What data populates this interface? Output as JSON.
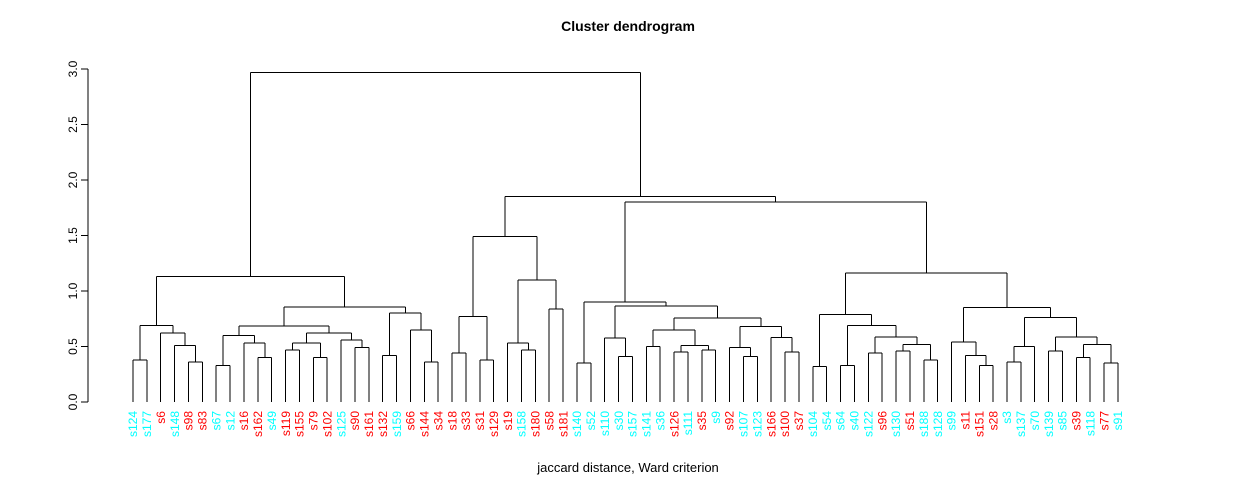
{
  "chart": {
    "title": "Cluster dendrogram",
    "xlabel": "jaccard distance, Ward criterion"
  },
  "chart_data": {
    "type": "dendrogram",
    "title": "Cluster dendrogram",
    "xlabel": "jaccard distance, Ward criterion",
    "ylabel": "",
    "y_axis": {
      "ticks": [
        "0.0",
        "0.5",
        "1.0",
        "1.5",
        "2.0",
        "2.5",
        "3.0"
      ],
      "range": [
        0,
        3.0
      ]
    },
    "legend": {
      "position": "none",
      "grid": false
    },
    "leaf_colors": {
      "cyan": "#00ffff",
      "red": "#ff0000"
    },
    "leaves": [
      {
        "label": "s124",
        "color": "cyan"
      },
      {
        "label": "s177",
        "color": "cyan"
      },
      {
        "label": "s6",
        "color": "red"
      },
      {
        "label": "s148",
        "color": "cyan"
      },
      {
        "label": "s98",
        "color": "red"
      },
      {
        "label": "s83",
        "color": "red"
      },
      {
        "label": "s67",
        "color": "cyan"
      },
      {
        "label": "s12",
        "color": "cyan"
      },
      {
        "label": "s16",
        "color": "red"
      },
      {
        "label": "s162",
        "color": "red"
      },
      {
        "label": "s49",
        "color": "cyan"
      },
      {
        "label": "s119",
        "color": "red"
      },
      {
        "label": "s155",
        "color": "red"
      },
      {
        "label": "s79",
        "color": "red"
      },
      {
        "label": "s102",
        "color": "red"
      },
      {
        "label": "s125",
        "color": "cyan"
      },
      {
        "label": "s90",
        "color": "red"
      },
      {
        "label": "s161",
        "color": "red"
      },
      {
        "label": "s132",
        "color": "red"
      },
      {
        "label": "s159",
        "color": "cyan"
      },
      {
        "label": "s66",
        "color": "red"
      },
      {
        "label": "s144",
        "color": "red"
      },
      {
        "label": "s34",
        "color": "red"
      },
      {
        "label": "s18",
        "color": "red"
      },
      {
        "label": "s33",
        "color": "red"
      },
      {
        "label": "s31",
        "color": "red"
      },
      {
        "label": "s129",
        "color": "red"
      },
      {
        "label": "s19",
        "color": "red"
      },
      {
        "label": "s158",
        "color": "cyan"
      },
      {
        "label": "s180",
        "color": "red"
      },
      {
        "label": "s58",
        "color": "red"
      },
      {
        "label": "s181",
        "color": "red"
      },
      {
        "label": "s140",
        "color": "cyan"
      },
      {
        "label": "s52",
        "color": "cyan"
      },
      {
        "label": "s110",
        "color": "cyan"
      },
      {
        "label": "s30",
        "color": "cyan"
      },
      {
        "label": "s157",
        "color": "cyan"
      },
      {
        "label": "s141",
        "color": "cyan"
      },
      {
        "label": "s36",
        "color": "cyan"
      },
      {
        "label": "s126",
        "color": "red"
      },
      {
        "label": "s111",
        "color": "cyan"
      },
      {
        "label": "s35",
        "color": "red"
      },
      {
        "label": "s9",
        "color": "cyan"
      },
      {
        "label": "s92",
        "color": "red"
      },
      {
        "label": "s107",
        "color": "cyan"
      },
      {
        "label": "s123",
        "color": "cyan"
      },
      {
        "label": "s166",
        "color": "red"
      },
      {
        "label": "s100",
        "color": "red"
      },
      {
        "label": "s37",
        "color": "red"
      },
      {
        "label": "s104",
        "color": "cyan"
      },
      {
        "label": "s54",
        "color": "cyan"
      },
      {
        "label": "s64",
        "color": "cyan"
      },
      {
        "label": "s40",
        "color": "cyan"
      },
      {
        "label": "s122",
        "color": "cyan"
      },
      {
        "label": "s96",
        "color": "red"
      },
      {
        "label": "s130",
        "color": "cyan"
      },
      {
        "label": "s51",
        "color": "red"
      },
      {
        "label": "s188",
        "color": "cyan"
      },
      {
        "label": "s128",
        "color": "cyan"
      },
      {
        "label": "s99",
        "color": "cyan"
      },
      {
        "label": "s11",
        "color": "red"
      },
      {
        "label": "s151",
        "color": "red"
      },
      {
        "label": "s28",
        "color": "red"
      },
      {
        "label": "s3",
        "color": "cyan"
      },
      {
        "label": "s137",
        "color": "cyan"
      },
      {
        "label": "s70",
        "color": "cyan"
      },
      {
        "label": "s139",
        "color": "cyan"
      },
      {
        "label": "s85",
        "color": "cyan"
      },
      {
        "label": "s39",
        "color": "red"
      },
      {
        "label": "s118",
        "color": "cyan"
      },
      {
        "label": "s77",
        "color": "red"
      },
      {
        "label": "s91",
        "color": "cyan"
      }
    ],
    "merges": [
      2.97,
      [
        1.13,
        [
          0.69,
          [
            0.38,
            0,
            1
          ],
          [
            0.62,
            2,
            [
              0.51,
              3,
              [
                0.36,
                4,
                5
              ]
            ]
          ]
        ],
        [
          0.855,
          [
            0.685,
            [
              0.6,
              [
                0.33,
                6,
                7
              ],
              [
                0.53,
                8,
                [
                  0.4,
                  9,
                  10
                ]
              ]
            ],
            [
              0.62,
              [
                0.53,
                [
                  0.47,
                  11,
                  12
                ],
                [
                  0.4,
                  13,
                  14
                ]
              ],
              [
                0.56,
                15,
                [
                  0.49,
                  16,
                  17
                ]
              ]
            ]
          ],
          [
            0.8,
            [
              0.42,
              18,
              19
            ],
            [
              0.65,
              20,
              [
                0.36,
                21,
                22
              ]
            ]
          ]
        ]
      ],
      [
        1.85,
        [
          1.49,
          [
            0.77,
            [
              0.44,
              23,
              24
            ],
            [
              0.38,
              25,
              26
            ]
          ],
          [
            1.1,
            [
              0.53,
              27,
              [
                0.47,
                28,
                29
              ]
            ],
            [
              0.84,
              30,
              31
            ]
          ]
        ],
        [
          1.8,
          [
            0.9,
            [
              0.35,
              32,
              33
            ],
            [
              0.865,
              [
                0.575,
                34,
                [
                  0.41,
                  35,
                  36
                ]
              ],
              [
                0.755,
                [
                  0.65,
                  [
                    0.5,
                    37,
                    38
                  ],
                  [
                    0.51,
                    [
                      0.45,
                      39,
                      40
                    ],
                    [
                      0.47,
                      41,
                      42
                    ]
                  ]
                ],
                [
                  0.68,
                  [
                    0.49,
                    43,
                    [
                      0.41,
                      44,
                      45
                    ]
                  ],
                  [
                    0.58,
                    46,
                    [
                      0.45,
                      47,
                      48
                    ]
                  ]
                ]
              ]
            ]
          ],
          [
            1.16,
            [
              0.79,
              [
                0.32,
                49,
                50
              ],
              [
                0.69,
                [
                  0.33,
                  51,
                  52
                ],
                [
                  0.585,
                  [
                    0.44,
                    53,
                    54
                  ],
                  [
                    0.52,
                    [
                      0.46,
                      55,
                      56
                    ],
                    [
                      0.38,
                      57,
                      58
                    ]
                  ]
                ]
              ]
            ],
            [
              0.85,
              [
                0.54,
                59,
                [
                  0.42,
                  60,
                  [
                    0.33,
                    61,
                    62
                  ]
                ]
              ],
              [
                0.76,
                [
                  0.5,
                  [
                    0.36,
                    63,
                    64
                  ],
                  65
                ],
                [
                  0.585,
                  [
                    0.46,
                    66,
                    67
                  ],
                  [
                    0.52,
                    [
                      0.4,
                      68,
                      69
                    ],
                    [
                      0.35,
                      70,
                      71
                    ]
                  ]
                ]
              ]
            ]
          ]
        ]
      ]
    ]
  }
}
